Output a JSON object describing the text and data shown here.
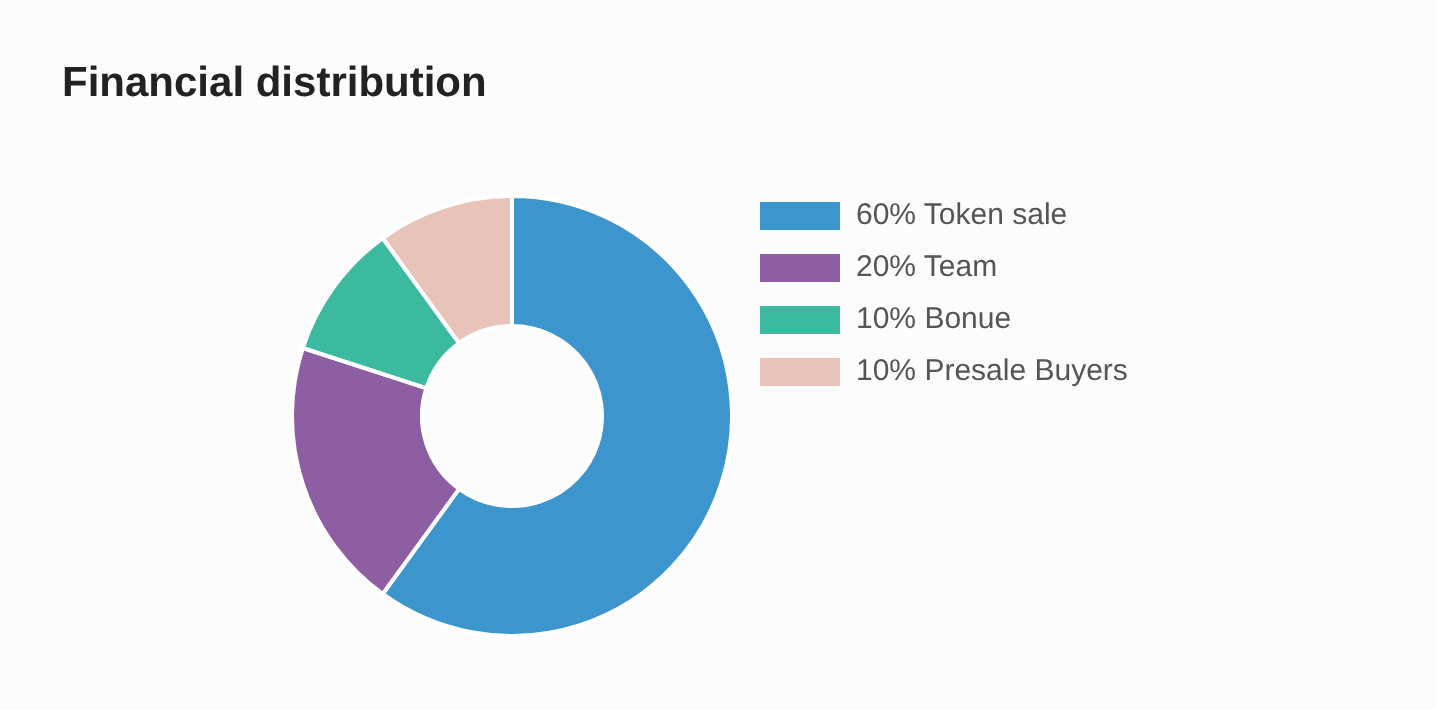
{
  "chart_data": {
    "type": "donut",
    "title": "Financial distribution",
    "categories": [
      "60% Token sale",
      "20% Team",
      "10% Bonue",
      "10% Presale Buyers"
    ],
    "values": [
      60,
      20,
      10,
      10
    ],
    "colors": [
      "#3d95ce",
      "#8e5ea2",
      "#3cba9f",
      "#e8c3b9"
    ],
    "legend": "right"
  }
}
